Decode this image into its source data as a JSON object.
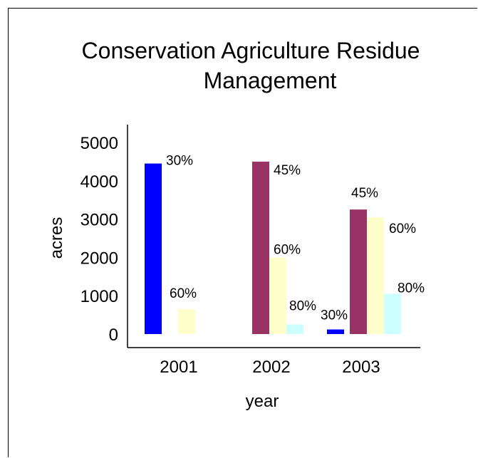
{
  "chart_data": {
    "type": "bar",
    "title_lines": [
      "Conservation Agriculture Residue",
      "Management"
    ],
    "xlabel": "year",
    "ylabel": "acres",
    "categories": [
      "2001",
      "2002",
      "2003"
    ],
    "ylim": [
      0,
      5000
    ],
    "yticks": [
      "0",
      "1000",
      "2000",
      "3000",
      "4000",
      "5000"
    ],
    "grid": false,
    "series": [
      {
        "name": "30%",
        "color": "#0000ff",
        "values": [
          4450,
          null,
          120
        ],
        "labels": [
          "30%",
          "",
          "30%"
        ]
      },
      {
        "name": "45%",
        "color": "#993366",
        "values": [
          null,
          4500,
          3250
        ],
        "labels": [
          "",
          "45%",
          "45%"
        ]
      },
      {
        "name": "60%",
        "color": "#ffffcc",
        "values": [
          650,
          2000,
          3050
        ],
        "labels": [
          "60%",
          "60%",
          "60%"
        ]
      },
      {
        "name": "80%",
        "color": "#ccffff",
        "values": [
          null,
          250,
          1050
        ],
        "labels": [
          "",
          "80%",
          "80%"
        ]
      }
    ]
  }
}
